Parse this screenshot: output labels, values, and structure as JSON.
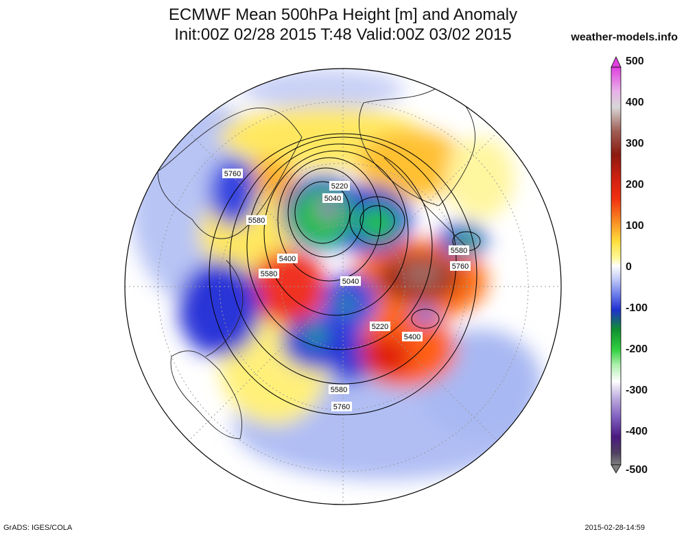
{
  "header": {
    "title_line1": "ECMWF Mean 500hPa Height [m] and Anomaly",
    "title_line2": "Init:00Z 02/28 2015 T:48 Valid:00Z 03/02 2015",
    "brand": "weather-models.info"
  },
  "footer": {
    "left": "GrADS: IGES/COLA",
    "right": "2015-02-28-14:59"
  },
  "colorbar": {
    "ticks": [
      "500",
      "400",
      "300",
      "200",
      "100",
      "0",
      "-100",
      "-200",
      "-300",
      "-400",
      "-500"
    ],
    "colors": [
      "#e040e0",
      "#d8d8d8",
      "#8c1a10",
      "#e62c16",
      "#f5a020",
      "#fff46a",
      "#ffffff",
      "#3040e0",
      "#22c040",
      "#a080d0",
      "#5a2090",
      "#707070"
    ]
  },
  "contour_labels": [
    {
      "text": "5760"
    },
    {
      "text": "5580"
    },
    {
      "text": "5220"
    },
    {
      "text": "5040"
    },
    {
      "text": "5400"
    },
    {
      "text": "5580"
    },
    {
      "text": "5040"
    },
    {
      "text": "5580"
    },
    {
      "text": "5760"
    },
    {
      "text": "5220"
    },
    {
      "text": "5400"
    },
    {
      "text": "5580"
    },
    {
      "text": "5760"
    }
  ]
}
